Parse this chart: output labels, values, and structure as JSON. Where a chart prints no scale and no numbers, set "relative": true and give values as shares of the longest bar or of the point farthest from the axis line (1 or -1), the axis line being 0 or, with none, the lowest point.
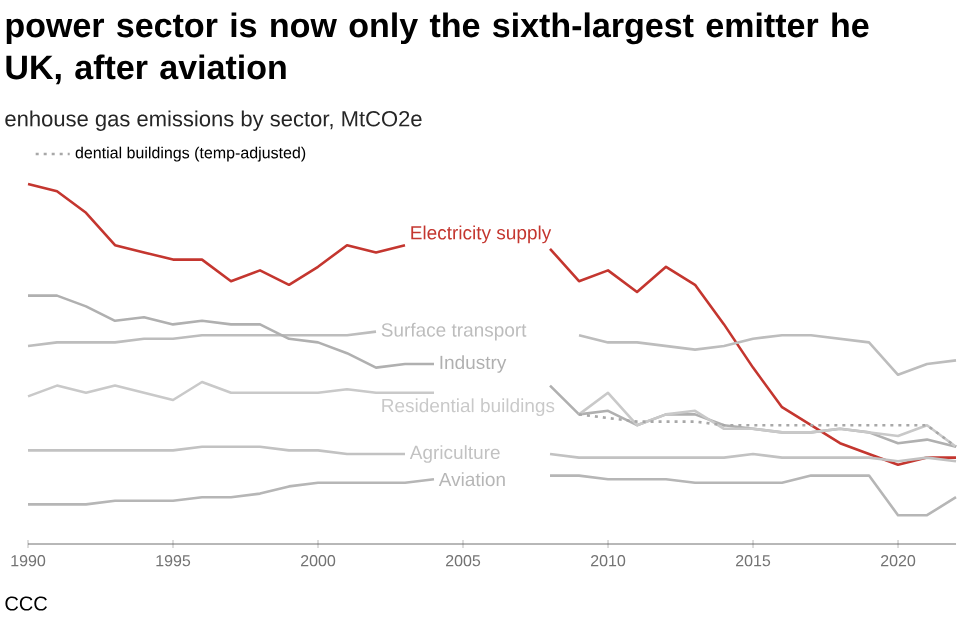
{
  "chart_data": {
    "type": "line",
    "title": "power sector is now only the sixth-largest emitter he UK, after aviation",
    "subtitle": "enhouse gas emissions by sector, MtCO2e",
    "relative": true,
    "legend": "top left",
    "x": [
      1990,
      1991,
      1992,
      1993,
      1994,
      1995,
      1996,
      1997,
      1998,
      1999,
      2000,
      2001,
      2002,
      2003,
      2004,
      2005,
      2006,
      2007,
      2008,
      2009,
      2010,
      2011,
      2012,
      2013,
      2014,
      2015,
      2016,
      2017,
      2018,
      2019,
      2020,
      2021,
      2022
    ],
    "xlim": [
      1990,
      2022
    ],
    "xticks": [
      1990,
      1995,
      2000,
      2005,
      2010,
      2015,
      2020
    ],
    "series": [
      {
        "name": "Electricity supply",
        "color": "#c4362f",
        "values": [
          1.0,
          0.98,
          0.92,
          0.83,
          0.81,
          0.79,
          0.79,
          0.73,
          0.76,
          0.72,
          0.77,
          0.83,
          0.81,
          0.83,
          null,
          null,
          null,
          null,
          0.82,
          0.73,
          0.76,
          0.7,
          0.77,
          0.72,
          0.61,
          0.49,
          0.38,
          0.33,
          0.28,
          0.25,
          0.22,
          0.24,
          0.24
        ]
      },
      {
        "name": "Surface transport",
        "color": "#bdbdbd",
        "values": [
          0.55,
          0.56,
          0.56,
          0.56,
          0.57,
          0.57,
          0.58,
          0.58,
          0.58,
          0.58,
          0.58,
          0.58,
          0.59,
          null,
          null,
          null,
          null,
          null,
          null,
          0.58,
          0.56,
          0.56,
          0.55,
          0.54,
          0.55,
          0.57,
          0.58,
          0.58,
          0.57,
          0.56,
          0.47,
          0.5,
          0.51
        ]
      },
      {
        "name": "Industry",
        "color": "#b0b0b0",
        "values": [
          0.69,
          0.69,
          0.66,
          0.62,
          0.63,
          0.61,
          0.62,
          0.61,
          0.61,
          0.57,
          0.56,
          0.53,
          0.49,
          0.5,
          0.5,
          null,
          null,
          null,
          0.44,
          0.36,
          0.37,
          0.33,
          0.36,
          0.36,
          0.33,
          0.32,
          0.31,
          0.31,
          0.32,
          0.31,
          0.28,
          0.29,
          0.27
        ]
      },
      {
        "name": "Residential buildings",
        "color": "#c9c9c9",
        "values": [
          0.41,
          0.44,
          0.42,
          0.44,
          0.42,
          0.4,
          0.45,
          0.42,
          0.42,
          0.42,
          0.42,
          0.43,
          0.42,
          0.42,
          0.42,
          null,
          null,
          null,
          null,
          0.36,
          0.42,
          0.33,
          0.36,
          0.37,
          0.32,
          0.32,
          0.31,
          0.31,
          0.32,
          0.31,
          0.3,
          0.33,
          0.27
        ]
      },
      {
        "name": "dential buildings (temp-adjusted)",
        "color": "#a8a8a8",
        "line_style": "dotted",
        "values": [
          null,
          null,
          null,
          null,
          null,
          null,
          null,
          null,
          null,
          null,
          null,
          null,
          null,
          null,
          null,
          null,
          null,
          null,
          null,
          0.36,
          0.35,
          0.34,
          0.34,
          0.34,
          0.33,
          0.33,
          0.33,
          0.33,
          0.33,
          0.33,
          0.33,
          0.33,
          0.27
        ]
      },
      {
        "name": "Agriculture",
        "color": "#c2c2c2",
        "values": [
          0.26,
          0.26,
          0.26,
          0.26,
          0.26,
          0.26,
          0.27,
          0.27,
          0.27,
          0.26,
          0.26,
          0.25,
          0.25,
          0.25,
          null,
          null,
          null,
          null,
          0.25,
          0.24,
          0.24,
          0.24,
          0.24,
          0.24,
          0.24,
          0.25,
          0.24,
          0.24,
          0.24,
          0.24,
          0.23,
          0.24,
          0.23
        ]
      },
      {
        "name": "Aviation",
        "color": "#b6b6b6",
        "values": [
          0.11,
          0.11,
          0.11,
          0.12,
          0.12,
          0.12,
          0.13,
          0.13,
          0.14,
          0.16,
          0.17,
          0.17,
          0.17,
          0.17,
          0.18,
          null,
          null,
          null,
          0.19,
          0.19,
          0.18,
          0.18,
          0.18,
          0.17,
          0.17,
          0.17,
          0.17,
          0.19,
          0.19,
          0.19,
          0.08,
          0.08,
          0.13
        ]
      }
    ],
    "annotations": [
      "CCC"
    ]
  }
}
